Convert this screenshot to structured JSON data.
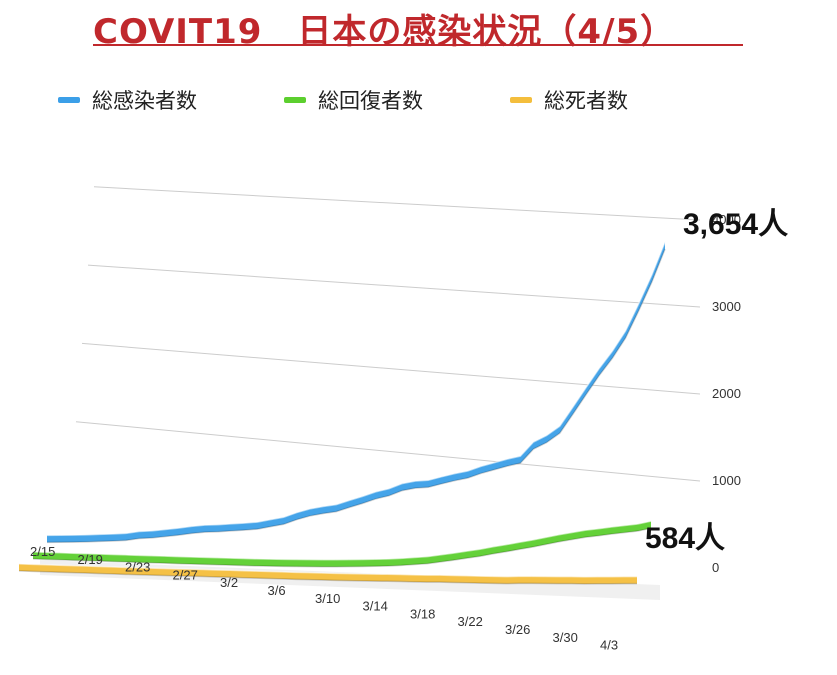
{
  "title": "COVIT19　日本の感染状況（4/5）",
  "colors": {
    "title": "#c0282c",
    "infected": "#3b9fe8",
    "recovered": "#5ccf2e",
    "deaths": "#f4be3c"
  },
  "callouts": {
    "infected": "3,654人",
    "recovered": "584人"
  },
  "chart_data": {
    "type": "line",
    "title": "COVIT19　日本の感染状況（4/5）",
    "xlabel": "",
    "ylabel": "",
    "ylim": [
      0,
      4000
    ],
    "yticks": [
      "0",
      "1000",
      "2000",
      "3000",
      "4000"
    ],
    "xticks": [
      "2/15",
      "2/19",
      "2/23",
      "2/27",
      "3/2",
      "3/6",
      "3/10",
      "3/14",
      "3/18",
      "3/22",
      "3/26",
      "3/30",
      "4/3"
    ],
    "legend_position": "top",
    "grid": true,
    "style": "3d-ribbon",
    "series": [
      {
        "name": "総感染者数",
        "values": [
          53,
          59,
          66,
          74,
          84,
          94,
          105,
          132,
          144,
          164,
          186,
          210,
          230,
          239,
          254,
          268,
          284,
          317,
          349,
          408,
          455,
          488,
          514,
          568,
          619,
          675,
          716,
          780,
          814,
          829,
          873,
          914,
          950,
          1007,
          1054,
          1101,
          1140,
          1307,
          1387,
          1499,
          1724,
          1953,
          2178,
          2381,
          2617,
          2935,
          3271,
          3654
        ]
      },
      {
        "name": "総回復者数",
        "values": [
          1,
          1,
          1,
          1,
          1,
          1,
          1,
          1,
          1,
          1,
          1,
          1,
          1,
          2,
          2,
          3,
          3,
          4,
          6,
          8,
          12,
          15,
          19,
          24,
          30,
          36,
          44,
          52,
          63,
          78,
          94,
          118,
          144,
          171,
          198,
          232,
          261,
          293,
          324,
          359,
          394,
          424,
          455,
          478,
          502,
          524,
          547,
          584
        ]
      },
      {
        "name": "総死者数",
        "values": [
          1,
          1,
          1,
          1,
          1,
          1,
          1,
          1,
          1,
          1,
          1,
          2,
          3,
          4,
          5,
          5,
          6,
          6,
          6,
          7,
          7,
          7,
          8,
          9,
          10,
          12,
          14,
          15,
          19,
          21,
          22,
          24,
          28,
          29,
          31,
          32,
          34,
          36,
          43,
          49,
          52,
          56,
          60,
          63,
          69,
          73,
          80,
          85
        ]
      }
    ]
  }
}
